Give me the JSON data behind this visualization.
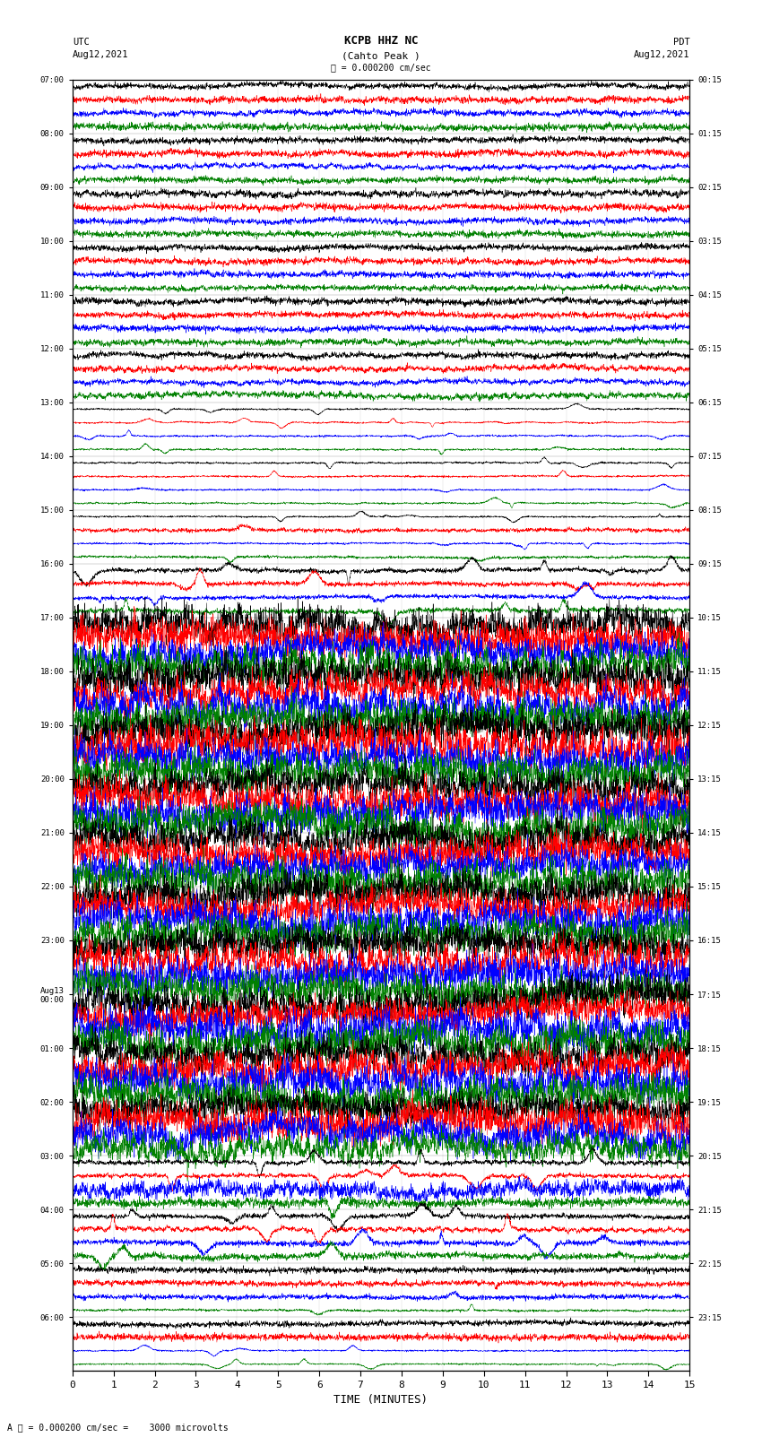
{
  "title_line1": "KCPB HHZ NC",
  "title_line2": "(Cahto Peak )",
  "scale_label": "= 0.000200 cm/sec",
  "label_utc": "UTC",
  "label_pdt": "PDT",
  "date_left": "Aug12,2021",
  "date_right": "Aug12,2021",
  "xlabel": "TIME (MINUTES)",
  "bottom_label": "= 0.000200 cm/sec =    3000 microvolts",
  "left_times": [
    "07:00",
    "08:00",
    "09:00",
    "10:00",
    "11:00",
    "12:00",
    "13:00",
    "14:00",
    "15:00",
    "16:00",
    "17:00",
    "18:00",
    "19:00",
    "20:00",
    "21:00",
    "22:00",
    "23:00",
    "Aug13\n00:00",
    "01:00",
    "02:00",
    "03:00",
    "04:00",
    "05:00",
    "06:00"
  ],
  "right_times": [
    "00:15",
    "01:15",
    "02:15",
    "03:15",
    "04:15",
    "05:15",
    "06:15",
    "07:15",
    "08:15",
    "09:15",
    "10:15",
    "11:15",
    "12:15",
    "13:15",
    "14:15",
    "15:15",
    "16:15",
    "17:15",
    "18:15",
    "19:15",
    "20:15",
    "21:15",
    "22:15",
    "23:15"
  ],
  "n_rows": 24,
  "traces_per_row": 4,
  "colors": [
    "black",
    "red",
    "blue",
    "green"
  ],
  "time_min": 0,
  "time_max": 15,
  "bg_color": "white",
  "text_color": "black",
  "fig_width": 8.5,
  "fig_height": 16.13,
  "noise_seed": 42,
  "row_amplitudes": [
    0.06,
    0.06,
    0.08,
    0.06,
    0.08,
    0.1,
    0.12,
    0.12,
    0.14,
    0.18,
    0.55,
    0.95,
    0.95,
    0.95,
    0.95,
    0.95,
    0.95,
    0.95,
    0.95,
    0.6,
    0.22,
    0.18,
    0.14,
    0.14
  ]
}
